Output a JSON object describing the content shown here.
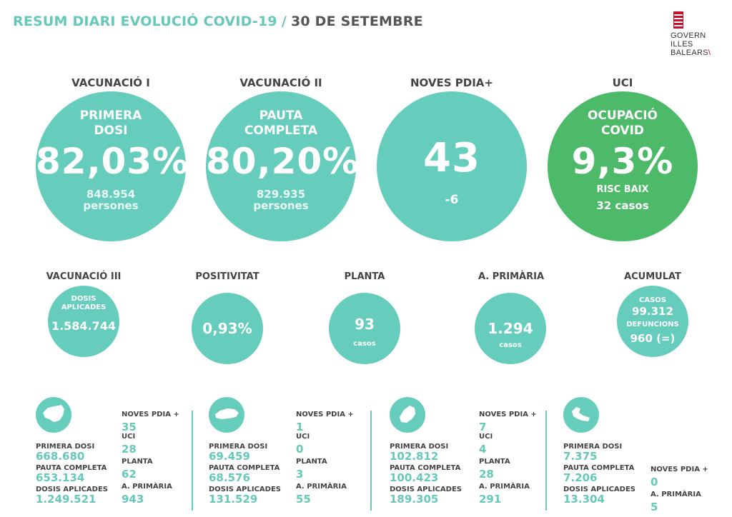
{
  "header": {
    "title_main": "RESUM DIARI EVOLUCIÓ COVID-19",
    "separator": "/",
    "title_date": "30 DE SETEMBRE"
  },
  "logo": {
    "line1": "GOVERN",
    "line2": "ILLES",
    "line3": "BALEARS"
  },
  "big": [
    {
      "heading": "VACUNACIÓ I",
      "sub1": "PRIMERA",
      "sub2": "DOSI",
      "value": "82,03%",
      "foot1": "848.954",
      "foot2": "persones"
    },
    {
      "heading": "VACUNACIÓ II",
      "sub1": "PAUTA",
      "sub2": "COMPLETA",
      "value": "80,20%",
      "foot1": "829.935",
      "foot2": "persones"
    },
    {
      "heading": "NOVES PDIA+",
      "value": "43",
      "foot1": "-6"
    },
    {
      "heading": "UCI",
      "sub1": "OCUPACIÓ",
      "sub2": "COVID",
      "value": "9,3%",
      "foot1": "RISC BAIX",
      "foot2": "32 casos"
    }
  ],
  "small": [
    {
      "heading": "VACUNACIÓ III",
      "lab1": "DOSIS",
      "lab2": "APLICADES",
      "value": "1.584.744"
    },
    {
      "heading": "POSITIVITAT",
      "value": "0,93%"
    },
    {
      "heading": "PLANTA",
      "value": "93",
      "lab": "casos"
    },
    {
      "heading": "A. PRIMÀRIA",
      "value": "1.294",
      "lab": "casos"
    },
    {
      "heading": "ACUMULAT",
      "lab1": "CASOS",
      "value1": "99.312",
      "lab2": "DEFUNCIONS",
      "value2": "960 (=)"
    }
  ],
  "islands": [
    {
      "primera_label": "PRIMERA DOSI",
      "primera": "668.680",
      "pauta_label": "PAUTA COMPLETA",
      "pauta": "653.134",
      "dosis_label": "DOSIS APLICADES",
      "dosis": "1.249.521",
      "pdia_label": "NOVES PDIA +",
      "pdia": "35",
      "uci_label": "UCI",
      "uci": "28",
      "planta_label": "PLANTA",
      "planta": "62",
      "ap_label": "A. PRIMÀRIA",
      "ap": "943"
    },
    {
      "primera_label": "PRIMERA DOSI",
      "primera": "69.459",
      "pauta_label": "PAUTA COMPLETA",
      "pauta": "68.576",
      "dosis_label": "DOSIS APLICADES",
      "dosis": "131.529",
      "pdia_label": "NOVES PDIA +",
      "pdia": "1",
      "uci_label": "UCI",
      "uci": "0",
      "planta_label": "PLANTA",
      "planta": "3",
      "ap_label": "A. PRIMÀRIA",
      "ap": "55"
    },
    {
      "primera_label": "PRIMERA DOSI",
      "primera": "102.812",
      "pauta_label": "PAUTA COMPLETA",
      "pauta": "100.423",
      "dosis_label": "DOSIS APLICADES",
      "dosis": "189.305",
      "pdia_label": "NOVES PDIA +",
      "pdia": "7",
      "uci_label": "UCI",
      "uci": "4",
      "planta_label": "PLANTA",
      "planta": "28",
      "ap_label": "A. PRIMÀRIA",
      "ap": "291"
    },
    {
      "primera_label": "PRIMERA DOSI",
      "primera": "7.375",
      "pauta_label": "PAUTA COMPLETA",
      "pauta": "7.206",
      "dosis_label": "DOSIS APLICADES",
      "dosis": "13.304",
      "pdia_label": "NOVES PDIA +",
      "pdia": "0",
      "ap_label": "A. PRIMÀRIA",
      "ap": "5"
    }
  ],
  "colors": {
    "teal": "#66cdbd",
    "green": "#4dba6a",
    "text": "#444444"
  }
}
